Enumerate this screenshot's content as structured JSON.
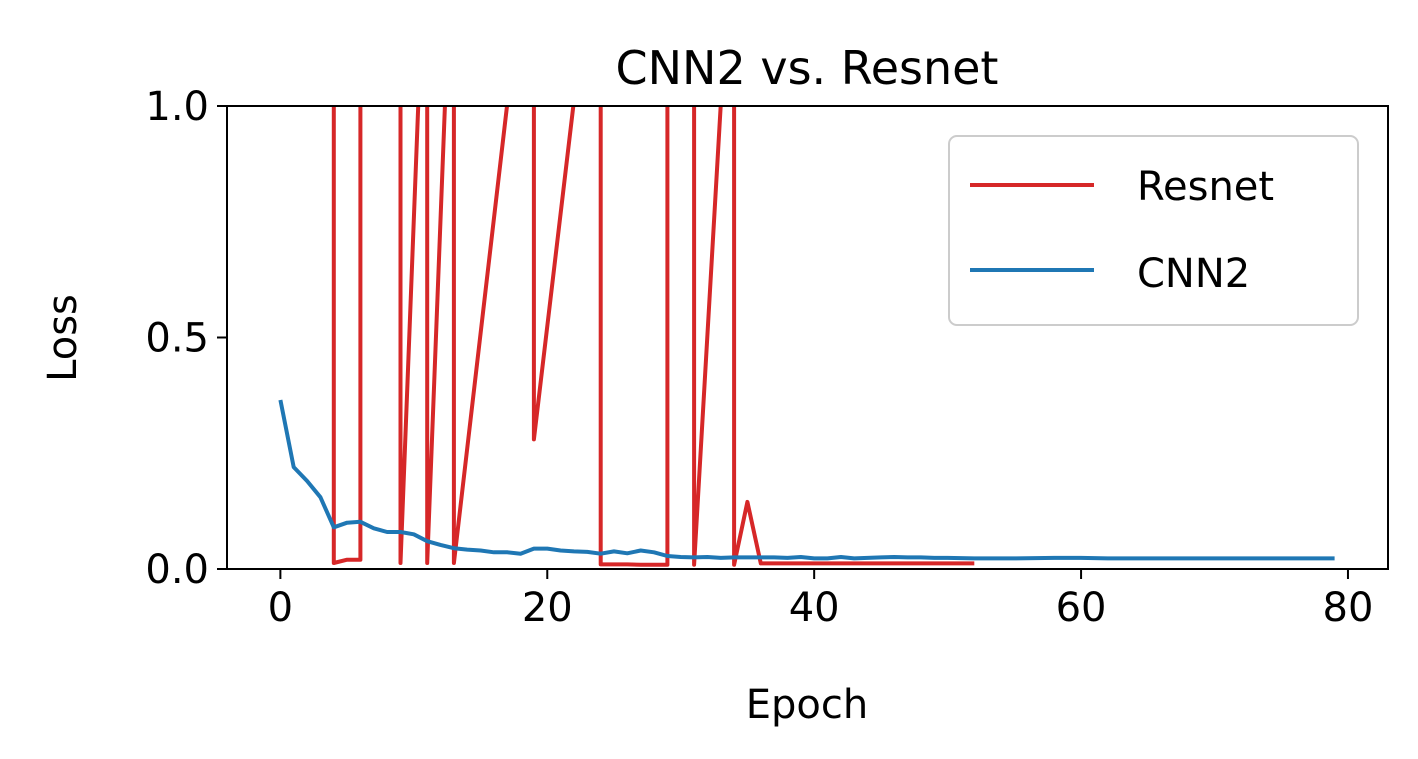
{
  "chart_data": {
    "type": "line",
    "title": "CNN2 vs. Resnet",
    "xlabel": "Epoch",
    "ylabel": "Loss",
    "xlim": [
      -4,
      83
    ],
    "ylim": [
      0,
      1.0
    ],
    "xticks": [
      0,
      20,
      40,
      60,
      80
    ],
    "xtick_labels": [
      "0",
      "20",
      "40",
      "60",
      "80"
    ],
    "yticks": [
      0,
      0.5,
      1.0
    ],
    "ytick_labels": [
      "0.0",
      "0.5",
      "1.0"
    ],
    "grid": false,
    "legend_position": "top-right",
    "series": [
      {
        "name": "Resnet",
        "color": "#d62728",
        "x": [
          4,
          4,
          5,
          6,
          6,
          9,
          9,
          11,
          11,
          13,
          13,
          19,
          19,
          24,
          24,
          25,
          26,
          27,
          28,
          29,
          29,
          31,
          31,
          34,
          34,
          35,
          36,
          37,
          38,
          39,
          40,
          41,
          42,
          43,
          44,
          45,
          46,
          47,
          48,
          49,
          50,
          51,
          52
        ],
        "y": [
          1.5,
          0.013,
          0.02,
          0.02,
          1.5,
          1.5,
          0.013,
          1.5,
          0.013,
          1.5,
          0.013,
          1.5,
          0.28,
          1.5,
          0.01,
          0.01,
          0.01,
          0.009,
          0.009,
          0.009,
          1.5,
          1.5,
          0.009,
          1.5,
          0.009,
          0.145,
          0.012,
          0.012,
          0.012,
          0.012,
          0.012,
          0.012,
          0.012,
          0.012,
          0.012,
          0.012,
          0.012,
          0.012,
          0.012,
          0.012,
          0.012,
          0.012,
          0.012
        ]
      },
      {
        "name": "CNN2",
        "color": "#1f77b4",
        "x": [
          0,
          1,
          2,
          3,
          4,
          5,
          6,
          7,
          8,
          9,
          10,
          11,
          12,
          13,
          14,
          15,
          16,
          17,
          18,
          19,
          20,
          21,
          22,
          23,
          24,
          25,
          26,
          27,
          28,
          29,
          30,
          31,
          32,
          33,
          34,
          35,
          36,
          37,
          38,
          39,
          40,
          41,
          42,
          43,
          44,
          45,
          46,
          47,
          48,
          49,
          50,
          52,
          55,
          58,
          60,
          62,
          65,
          70,
          75,
          79
        ],
        "y": [
          0.365,
          0.22,
          0.19,
          0.155,
          0.09,
          0.1,
          0.102,
          0.088,
          0.08,
          0.08,
          0.075,
          0.06,
          0.052,
          0.045,
          0.042,
          0.04,
          0.036,
          0.036,
          0.033,
          0.044,
          0.044,
          0.04,
          0.038,
          0.037,
          0.033,
          0.038,
          0.034,
          0.04,
          0.036,
          0.028,
          0.026,
          0.025,
          0.026,
          0.024,
          0.025,
          0.025,
          0.025,
          0.025,
          0.024,
          0.026,
          0.023,
          0.023,
          0.026,
          0.023,
          0.024,
          0.025,
          0.026,
          0.025,
          0.025,
          0.024,
          0.024,
          0.023,
          0.023,
          0.024,
          0.024,
          0.023,
          0.023,
          0.023,
          0.023,
          0.023
        ]
      }
    ]
  }
}
